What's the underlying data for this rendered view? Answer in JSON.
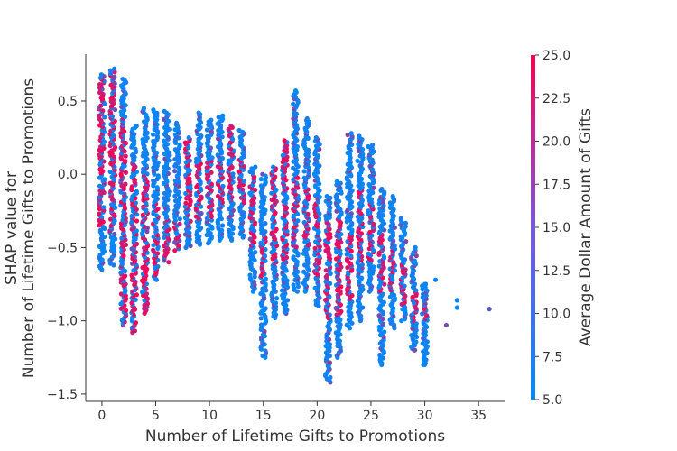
{
  "chart_data": {
    "type": "scatter",
    "title": "",
    "xlabel": "Number of Lifetime Gifts to Promotions",
    "ylabel_lines": [
      "SHAP value for",
      "Number of Lifetime Gifts to Promotions"
    ],
    "xlim": [
      -1.5,
      37.5
    ],
    "ylim": [
      -1.55,
      0.82
    ],
    "x_ticks": [
      0,
      5,
      10,
      15,
      20,
      25,
      30,
      35
    ],
    "y_ticks": [
      0.5,
      0.0,
      -0.5,
      -1.0,
      -1.5
    ],
    "x_tick_labels": [
      "0",
      "5",
      "10",
      "15",
      "20",
      "25",
      "30",
      "35"
    ],
    "y_tick_labels": [
      "0.5",
      "0.0",
      "−0.5",
      "−1.0",
      "−1.5"
    ],
    "colorbar": {
      "label": "Average Dollar Amount of Gifts",
      "range": [
        5.0,
        25.0
      ],
      "ticks": [
        5.0,
        7.5,
        10.0,
        12.5,
        15.0,
        17.5,
        20.0,
        22.5,
        25.0
      ],
      "tick_labels": [
        "5.0",
        "7.5",
        "10.0",
        "12.5",
        "15.0",
        "17.5",
        "20.0",
        "22.5",
        "25.0"
      ],
      "colors": [
        "#008bfb",
        "#ff0052"
      ]
    },
    "columns": [
      {
        "x": 0,
        "min": -0.65,
        "max": 0.68,
        "hi_min": -0.35,
        "hi_max": 0.66
      },
      {
        "x": 1,
        "min": -0.62,
        "max": 0.72,
        "hi_min": -0.4,
        "hi_max": 0.7
      },
      {
        "x": 2,
        "min": -1.03,
        "max": 0.65,
        "hi_min": -1.03,
        "hi_max": 0.4
      },
      {
        "x": 3,
        "min": -1.08,
        "max": 0.33,
        "hi_min": -1.08,
        "hi_max": 0.1
      },
      {
        "x": 4,
        "min": -0.95,
        "max": 0.45,
        "hi_min": -0.95,
        "hi_max": 0.0
      },
      {
        "x": 5,
        "min": -0.72,
        "max": 0.44,
        "hi_min": -0.72,
        "hi_max": -0.2
      },
      {
        "x": 6,
        "min": -0.6,
        "max": 0.43,
        "hi_min": -0.6,
        "hi_max": -0.3
      },
      {
        "x": 7,
        "min": -0.52,
        "max": 0.35,
        "hi_min": -0.52,
        "hi_max": -0.3
      },
      {
        "x": 8,
        "min": -0.5,
        "max": 0.25,
        "hi_min": -0.35,
        "hi_max": 0.25
      },
      {
        "x": 9,
        "min": -0.48,
        "max": 0.42,
        "hi_min": -0.3,
        "hi_max": 0.1
      },
      {
        "x": 10,
        "min": -0.47,
        "max": 0.37,
        "hi_min": -0.3,
        "hi_max": 0.1
      },
      {
        "x": 11,
        "min": -0.45,
        "max": 0.4,
        "hi_min": -0.2,
        "hi_max": 0.1
      },
      {
        "x": 12,
        "min": -0.45,
        "max": 0.33,
        "hi_min": -0.2,
        "hi_max": 0.34
      },
      {
        "x": 13,
        "min": -0.43,
        "max": 0.3,
        "hi_min": -0.2,
        "hi_max": 0.1
      },
      {
        "x": 14,
        "min": -0.8,
        "max": 0.05,
        "hi_min": -0.5,
        "hi_max": 0.0
      },
      {
        "x": 15,
        "min": -1.25,
        "max": 0.0,
        "hi_min": -0.7,
        "hi_max": -0.4
      },
      {
        "x": 16,
        "min": -0.98,
        "max": 0.05,
        "hi_min": -0.6,
        "hi_max": 0.05
      },
      {
        "x": 17,
        "min": -0.95,
        "max": 0.23,
        "hi_min": -0.6,
        "hi_max": 0.23
      },
      {
        "x": 18,
        "min": -0.8,
        "max": 0.57,
        "hi_min": -0.5,
        "hi_max": 0.0
      },
      {
        "x": 19,
        "min": -0.8,
        "max": 0.38,
        "hi_min": -0.5,
        "hi_max": -0.1
      },
      {
        "x": 20,
        "min": -0.9,
        "max": 0.25,
        "hi_min": -0.7,
        "hi_max": -0.2
      },
      {
        "x": 21,
        "min": -1.42,
        "max": -0.15,
        "hi_min": -1.0,
        "hi_max": -0.3
      },
      {
        "x": 22,
        "min": -1.25,
        "max": -0.05,
        "hi_min": -1.0,
        "hi_max": -0.3
      },
      {
        "x": 23,
        "min": -1.05,
        "max": 0.28,
        "hi_min": -0.86,
        "hi_max": -0.4
      },
      {
        "x": 24,
        "min": -1.0,
        "max": 0.26,
        "hi_min": -0.6,
        "hi_max": -0.1
      },
      {
        "x": 25,
        "min": -0.8,
        "max": 0.2,
        "hi_min": -0.6,
        "hi_max": -0.2
      },
      {
        "x": 26,
        "min": -1.3,
        "max": -0.1,
        "hi_min": -0.8,
        "hi_max": -0.4
      },
      {
        "x": 27,
        "min": -1.05,
        "max": -0.15,
        "hi_min": -0.8,
        "hi_max": -0.5
      },
      {
        "x": 28,
        "min": -1.0,
        "max": -0.3,
        "hi_min": -0.9,
        "hi_max": -0.6
      },
      {
        "x": 29,
        "min": -1.2,
        "max": -0.5,
        "hi_min": -1.0,
        "hi_max": -0.8
      },
      {
        "x": 30,
        "min": -1.3,
        "max": -0.75,
        "hi_min": -1.0,
        "hi_max": -0.9
      }
    ],
    "sparse_points": [
      {
        "x": 24,
        "y": -0.92,
        "c": 6
      },
      {
        "x": 26,
        "y": -1.25,
        "c": 6
      },
      {
        "x": 27,
        "y": -0.72,
        "c": 6
      },
      {
        "x": 27,
        "y": -0.88,
        "c": 6
      },
      {
        "x": 28,
        "y": -0.6,
        "c": 6
      },
      {
        "x": 29,
        "y": -0.88,
        "c": 6
      },
      {
        "x": 29,
        "y": -1.2,
        "c": 14
      },
      {
        "x": 30,
        "y": -0.75,
        "c": 6
      },
      {
        "x": 30,
        "y": -1.3,
        "c": 6
      },
      {
        "x": 31,
        "y": -0.72,
        "c": 6
      },
      {
        "x": 32,
        "y": -1.03,
        "c": 14
      },
      {
        "x": 33,
        "y": -0.86,
        "c": 6
      },
      {
        "x": 33,
        "y": -0.91,
        "c": 6
      },
      {
        "x": 36,
        "y": -0.92,
        "c": 12
      }
    ]
  }
}
